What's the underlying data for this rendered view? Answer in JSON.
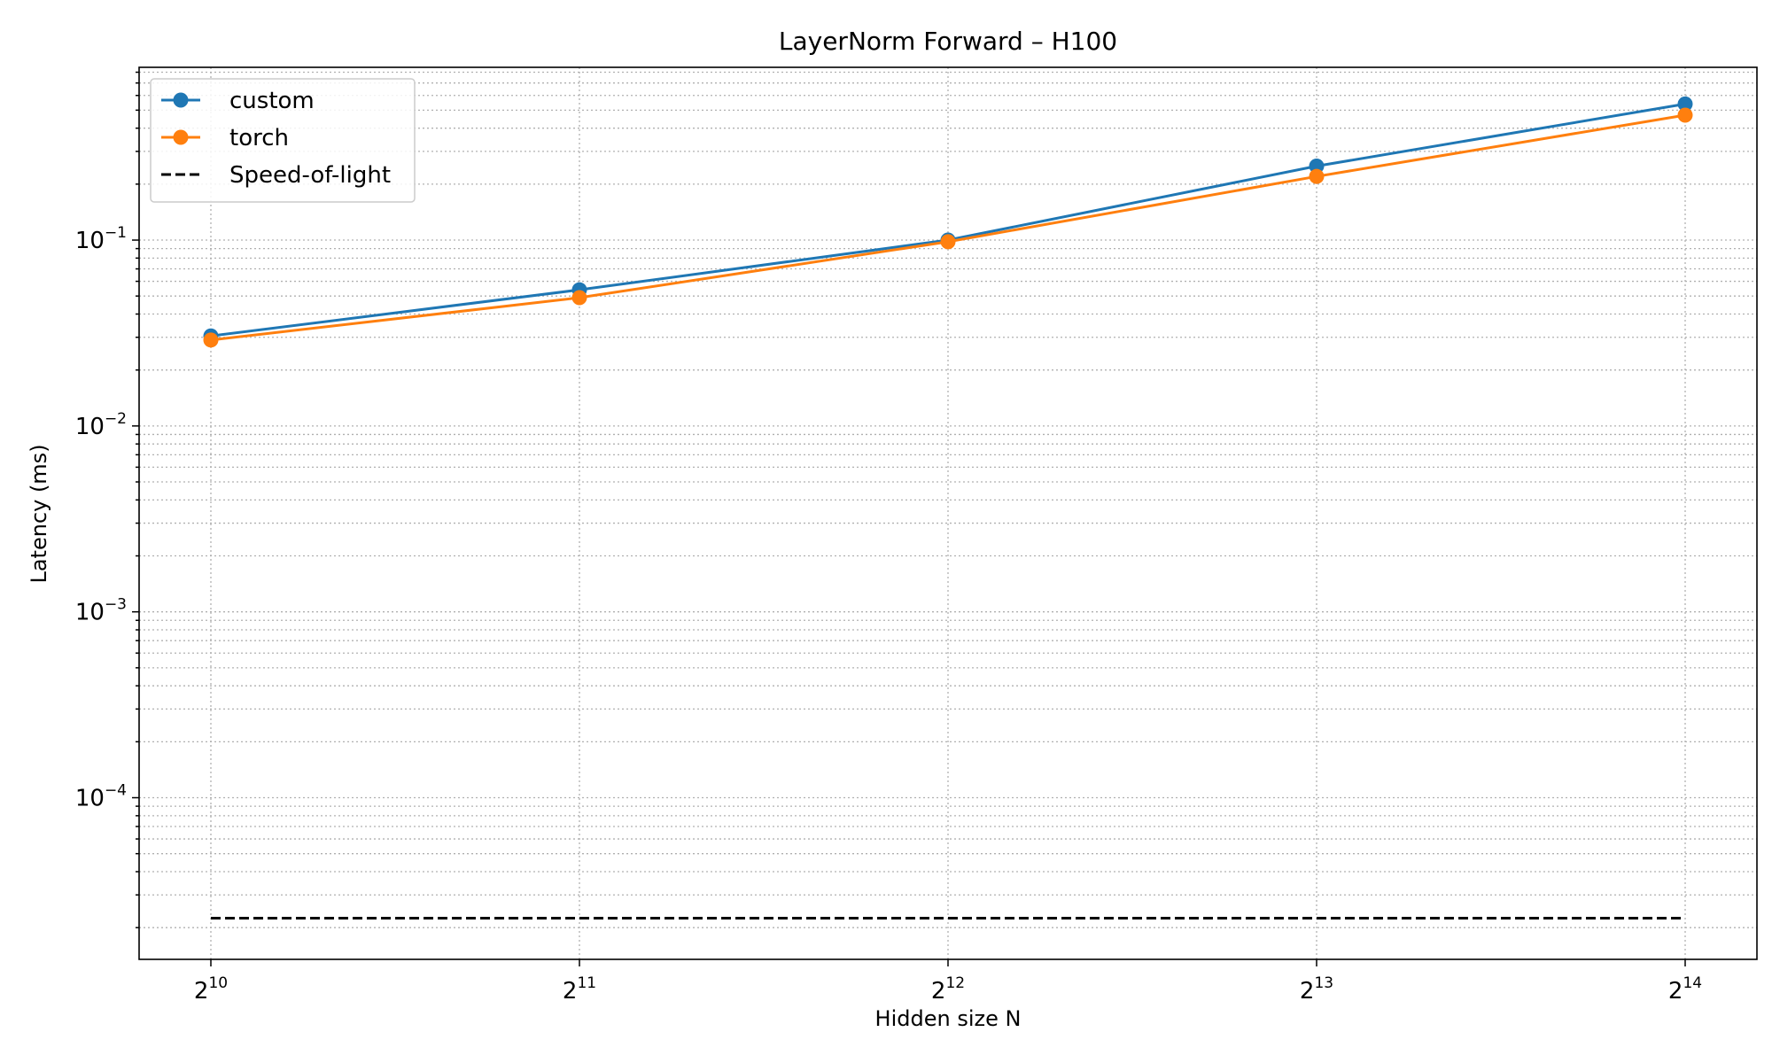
{
  "chart_data": {
    "type": "line",
    "title": "LayerNorm Forward – H100",
    "xlabel": "Hidden size N",
    "ylabel": "Latency (ms)",
    "x_scale": "log2",
    "y_scale": "log10",
    "x": [
      1024,
      2048,
      4096,
      8192,
      16384
    ],
    "x_tick_labels": [
      {
        "base": "2",
        "exp": "10"
      },
      {
        "base": "2",
        "exp": "11"
      },
      {
        "base": "2",
        "exp": "12"
      },
      {
        "base": "2",
        "exp": "13"
      },
      {
        "base": "2",
        "exp": "14"
      }
    ],
    "y_tick_labels": [
      {
        "base": "10",
        "exp": "−4",
        "value": 0.0001
      },
      {
        "base": "10",
        "exp": "−3",
        "value": 0.001
      },
      {
        "base": "10",
        "exp": "−2",
        "value": 0.01
      },
      {
        "base": "10",
        "exp": "−1",
        "value": 0.1
      }
    ],
    "ylim": [
      1.35e-05,
      0.85
    ],
    "grid": true,
    "legend_position": "top-left",
    "series": [
      {
        "name": "custom",
        "color": "#1f77b4",
        "style": "solid",
        "marker": "circle",
        "values": [
          0.0305,
          0.054,
          0.1,
          0.25,
          0.54
        ]
      },
      {
        "name": "torch",
        "color": "#ff7f0e",
        "style": "solid",
        "marker": "circle",
        "values": [
          0.029,
          0.049,
          0.098,
          0.22,
          0.47
        ]
      },
      {
        "name": "Speed-of-light",
        "color": "#000000",
        "style": "dashed",
        "marker": "none",
        "values": [
          2.25e-05,
          2.25e-05,
          2.25e-05,
          2.25e-05,
          2.25e-05
        ]
      }
    ]
  }
}
